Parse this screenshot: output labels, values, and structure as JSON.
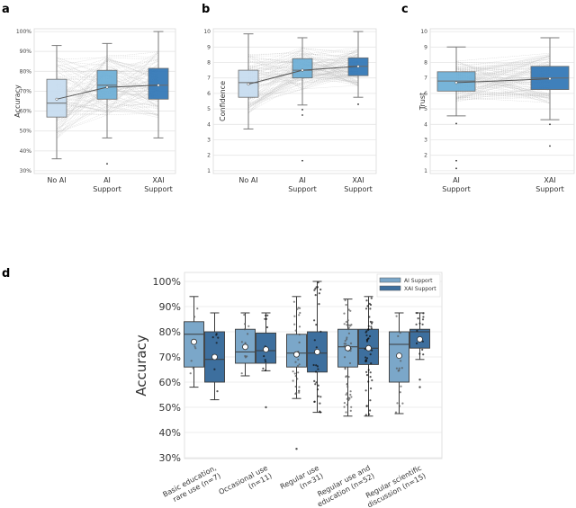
{
  "chart_data": [
    {
      "panel": "a",
      "type": "box",
      "title": "",
      "xlabel": "",
      "ylabel": "Accuracy",
      "ylim": [
        30,
        100
      ],
      "yticks": [
        "30%",
        "40%",
        "50%",
        "60%",
        "70%",
        "80%",
        "90%",
        "100%"
      ],
      "ytick_values": [
        30,
        40,
        50,
        60,
        70,
        80,
        90,
        100
      ],
      "grid": true,
      "paired_lines": true,
      "mean_line": true,
      "categories": [
        "No AI",
        "AI\nSupport",
        "XAI\nSupport"
      ],
      "boxes": [
        {
          "label": "No AI",
          "color": "#c6dbef",
          "whisker_low": 36,
          "q1": 57,
          "median": 64,
          "q3": 76,
          "whisker_high": 93,
          "mean": 66,
          "outliers": []
        },
        {
          "label": "AI Support",
          "color": "#6baed6",
          "whisker_low": 46.5,
          "q1": 66,
          "median": 73,
          "q3": 80.5,
          "whisker_high": 94,
          "mean": 72,
          "outliers": [
            33.5
          ]
        },
        {
          "label": "XAI Support",
          "color": "#2f75b5",
          "whisker_low": 46.5,
          "q1": 66,
          "median": 73,
          "q3": 81.5,
          "whisker_high": 100,
          "mean": 73,
          "outliers": []
        }
      ]
    },
    {
      "panel": "b",
      "type": "box",
      "title": "",
      "xlabel": "",
      "ylabel": "Confidence",
      "ylim": [
        1,
        10
      ],
      "yticks": [
        "1",
        "2",
        "3",
        "4",
        "5",
        "6",
        "7",
        "8",
        "9",
        "10"
      ],
      "ytick_values": [
        1,
        2,
        3,
        4,
        5,
        6,
        7,
        8,
        9,
        10
      ],
      "grid": true,
      "paired_lines": true,
      "mean_line": true,
      "categories": [
        "No AI",
        "AI\nSupport",
        "XAI\nSupport"
      ],
      "boxes": [
        {
          "label": "No AI",
          "color": "#c6dbef",
          "whisker_low": 3.7,
          "q1": 5.75,
          "median": 6.7,
          "q3": 7.5,
          "whisker_high": 9.85,
          "mean": 6.6,
          "outliers": []
        },
        {
          "label": "AI Support",
          "color": "#6baed6",
          "whisker_low": 5.25,
          "q1": 7.0,
          "median": 7.5,
          "q3": 8.25,
          "whisker_high": 9.6,
          "mean": 7.5,
          "outliers": [
            4.95,
            4.6,
            1.65
          ]
        },
        {
          "label": "XAI Support",
          "color": "#2f75b5",
          "whisker_low": 5.75,
          "q1": 7.15,
          "median": 7.75,
          "q3": 8.3,
          "whisker_high": 10,
          "mean": 7.75,
          "outliers": [
            5.3
          ]
        }
      ]
    },
    {
      "panel": "c",
      "type": "box",
      "title": "",
      "xlabel": "",
      "ylabel": "Trust",
      "ylim": [
        1,
        10
      ],
      "yticks": [
        "1",
        "2",
        "3",
        "4",
        "5",
        "6",
        "7",
        "8",
        "9",
        "10"
      ],
      "ytick_values": [
        1,
        2,
        3,
        4,
        5,
        6,
        7,
        8,
        9,
        10
      ],
      "grid": true,
      "paired_lines": true,
      "mean_line": true,
      "categories": [
        "AI\nSupport",
        "XAI\nSupport"
      ],
      "boxes": [
        {
          "label": "AI Support",
          "color": "#6baed6",
          "whisker_low": 4.55,
          "q1": 6.15,
          "median": 6.8,
          "q3": 7.4,
          "whisker_high": 9.0,
          "mean": 6.7,
          "outliers": [
            4.05,
            1.65,
            1.15
          ]
        },
        {
          "label": "XAI Support",
          "color": "#2f75b5",
          "whisker_low": 4.3,
          "q1": 6.25,
          "median": 7.0,
          "q3": 7.75,
          "whisker_high": 9.6,
          "mean": 6.95,
          "outliers": [
            4.0,
            2.6
          ]
        }
      ]
    },
    {
      "panel": "d",
      "type": "box",
      "title": "",
      "xlabel": "",
      "ylabel": "Accuracy",
      "ylim": [
        30,
        100
      ],
      "yticks": [
        "30%",
        "40%",
        "50%",
        "60%",
        "70%",
        "80%",
        "90%",
        "100%"
      ],
      "ytick_values": [
        30,
        40,
        50,
        60,
        70,
        80,
        90,
        100
      ],
      "grid": true,
      "legend": {
        "placement": "top-right",
        "entries": [
          {
            "label": "AI Support",
            "color": "#7ba7c9"
          },
          {
            "label": "XAI Support",
            "color": "#3d6f9e"
          }
        ]
      },
      "categories": [
        "Basic education,\nrare use (n=7)",
        "Occasional use\n(n=11)",
        "Regular use\n(n=31)",
        "Regular use and\neducation (n=52)",
        "Regular scientific\ndiscussion (n=15)"
      ],
      "series": [
        {
          "name": "AI Support",
          "color": "#7ba7c9",
          "boxes": [
            {
              "whisker_low": 58,
              "q1": 66,
              "median": 79,
              "q3": 84,
              "whisker_high": 94,
              "mean": 76,
              "outliers": []
            },
            {
              "whisker_low": 62.5,
              "q1": 67.5,
              "median": 72,
              "q3": 81,
              "whisker_high": 87.5,
              "mean": 74,
              "outliers": []
            },
            {
              "whisker_low": 53.5,
              "q1": 66,
              "median": 71.5,
              "q3": 79,
              "whisker_high": 94,
              "mean": 71,
              "outliers": [
                33.5
              ]
            },
            {
              "whisker_low": 46.5,
              "q1": 66,
              "median": 74,
              "q3": 81,
              "whisker_high": 93,
              "mean": 73.5,
              "outliers": []
            },
            {
              "whisker_low": 47.5,
              "q1": 60,
              "median": 75,
              "q3": 80,
              "whisker_high": 87.5,
              "mean": 70.5,
              "outliers": []
            }
          ]
        },
        {
          "name": "XAI Support",
          "color": "#3d6f9e",
          "boxes": [
            {
              "whisker_low": 53,
              "q1": 60,
              "median": 69,
              "q3": 80,
              "whisker_high": 87.5,
              "mean": 70,
              "outliers": []
            },
            {
              "whisker_low": 64.5,
              "q1": 67.5,
              "median": 72.5,
              "q3": 79.5,
              "whisker_high": 87.5,
              "mean": 73,
              "outliers": [
                50
              ]
            },
            {
              "whisker_low": 48,
              "q1": 64,
              "median": 71.5,
              "q3": 80,
              "whisker_high": 100,
              "mean": 72,
              "outliers": []
            },
            {
              "whisker_low": 46.5,
              "q1": 67,
              "median": 73.5,
              "q3": 81,
              "whisker_high": 94,
              "mean": 73.5,
              "outliers": []
            },
            {
              "whisker_low": 69,
              "q1": 73.5,
              "median": 80,
              "q3": 81,
              "whisker_high": 87.5,
              "mean": 77,
              "outliers": [
                61,
                58
              ]
            }
          ]
        }
      ]
    }
  ],
  "panel_letters": [
    "a",
    "b",
    "c",
    "d"
  ],
  "colors": {
    "grid": "#e6e6e6",
    "frame": "#d9d9d9",
    "whisker": "#7a7a7a",
    "whisker_d": "#3a3a3a",
    "paired_line": "#bdbdbd",
    "mean_line": "#555555",
    "box_edge": "#6b6b6b",
    "box_edge_d": "#3a3a3a"
  }
}
